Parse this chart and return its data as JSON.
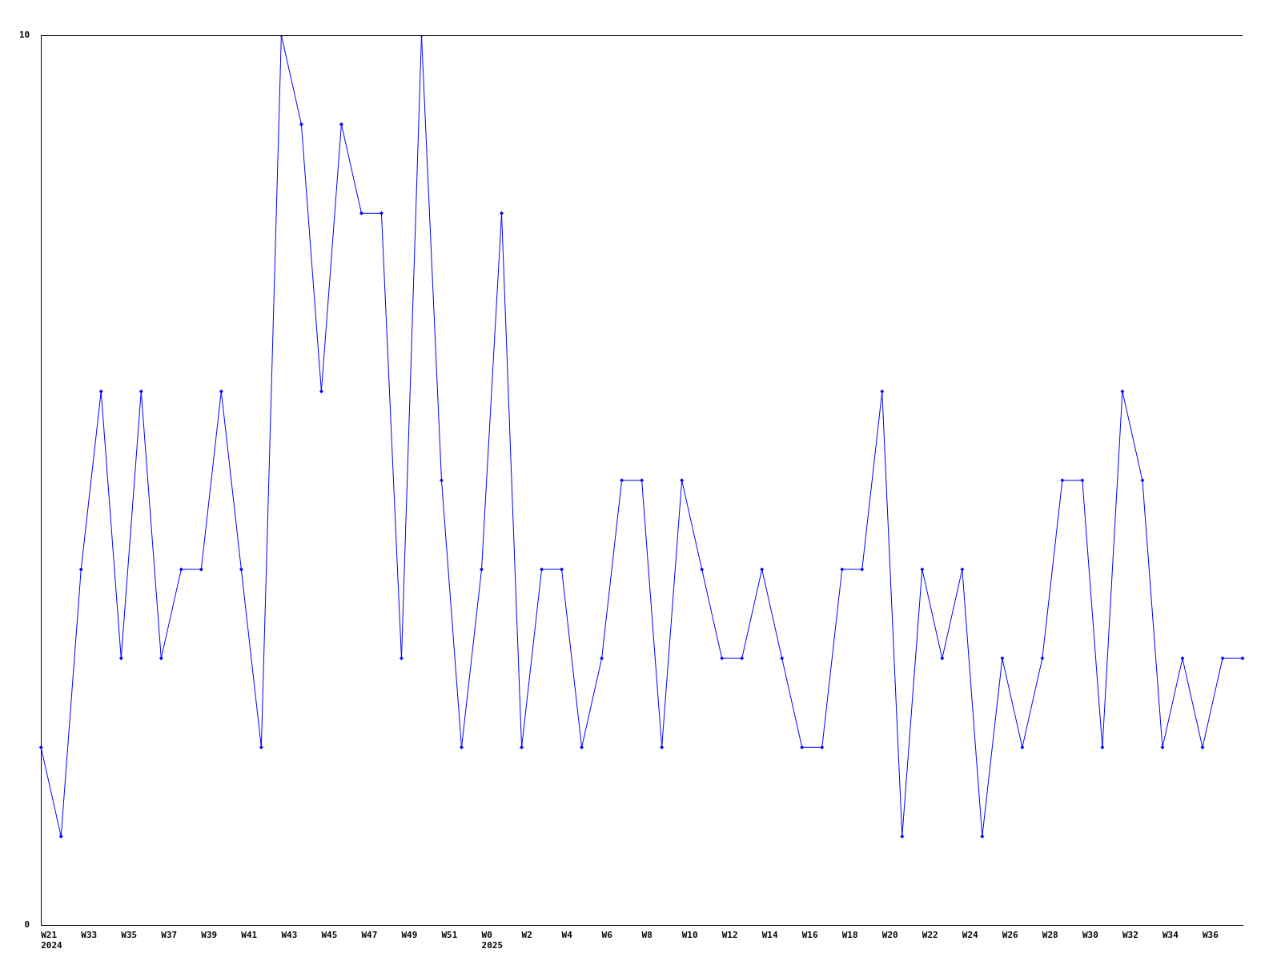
{
  "chart_data": {
    "type": "line",
    "categories": [
      "W21\n2024",
      null,
      "W33",
      null,
      "W35",
      null,
      "W37",
      null,
      "W39",
      null,
      "W41",
      null,
      "W43",
      null,
      "W45",
      null,
      "W47",
      null,
      "W49",
      null,
      "W51",
      null,
      "W0\n2025",
      null,
      "W2",
      null,
      "W4",
      null,
      "W6",
      null,
      "W8",
      null,
      "W10",
      null,
      "W12",
      null,
      "W14",
      null,
      "W16",
      null,
      "W18",
      null,
      "W20",
      null,
      "W22",
      null,
      "W24",
      null,
      "W26",
      null,
      "W28",
      null,
      "W30",
      null,
      "W32",
      null,
      "W34",
      null,
      "W36",
      null,
      null
    ],
    "series": [
      {
        "color": "#0000ff",
        "values": [
          2,
          1,
          4,
          6,
          3,
          6,
          3,
          4,
          4,
          6,
          4,
          2,
          10,
          9,
          6,
          9,
          8,
          8,
          3,
          10,
          5,
          2,
          4,
          8,
          2,
          4,
          4,
          2,
          3,
          5,
          5,
          2,
          5,
          4,
          3,
          3,
          4,
          3,
          2,
          2,
          4,
          4,
          6,
          1,
          4,
          3,
          4,
          1,
          3,
          2,
          3,
          5,
          5,
          2,
          6,
          5,
          2,
          3,
          2,
          3,
          3
        ]
      }
    ],
    "ylim": [
      0,
      10
    ],
    "yticks": [
      0,
      10
    ],
    "grid": false,
    "legend": false,
    "marker": "diamond",
    "line_style": "solid"
  }
}
